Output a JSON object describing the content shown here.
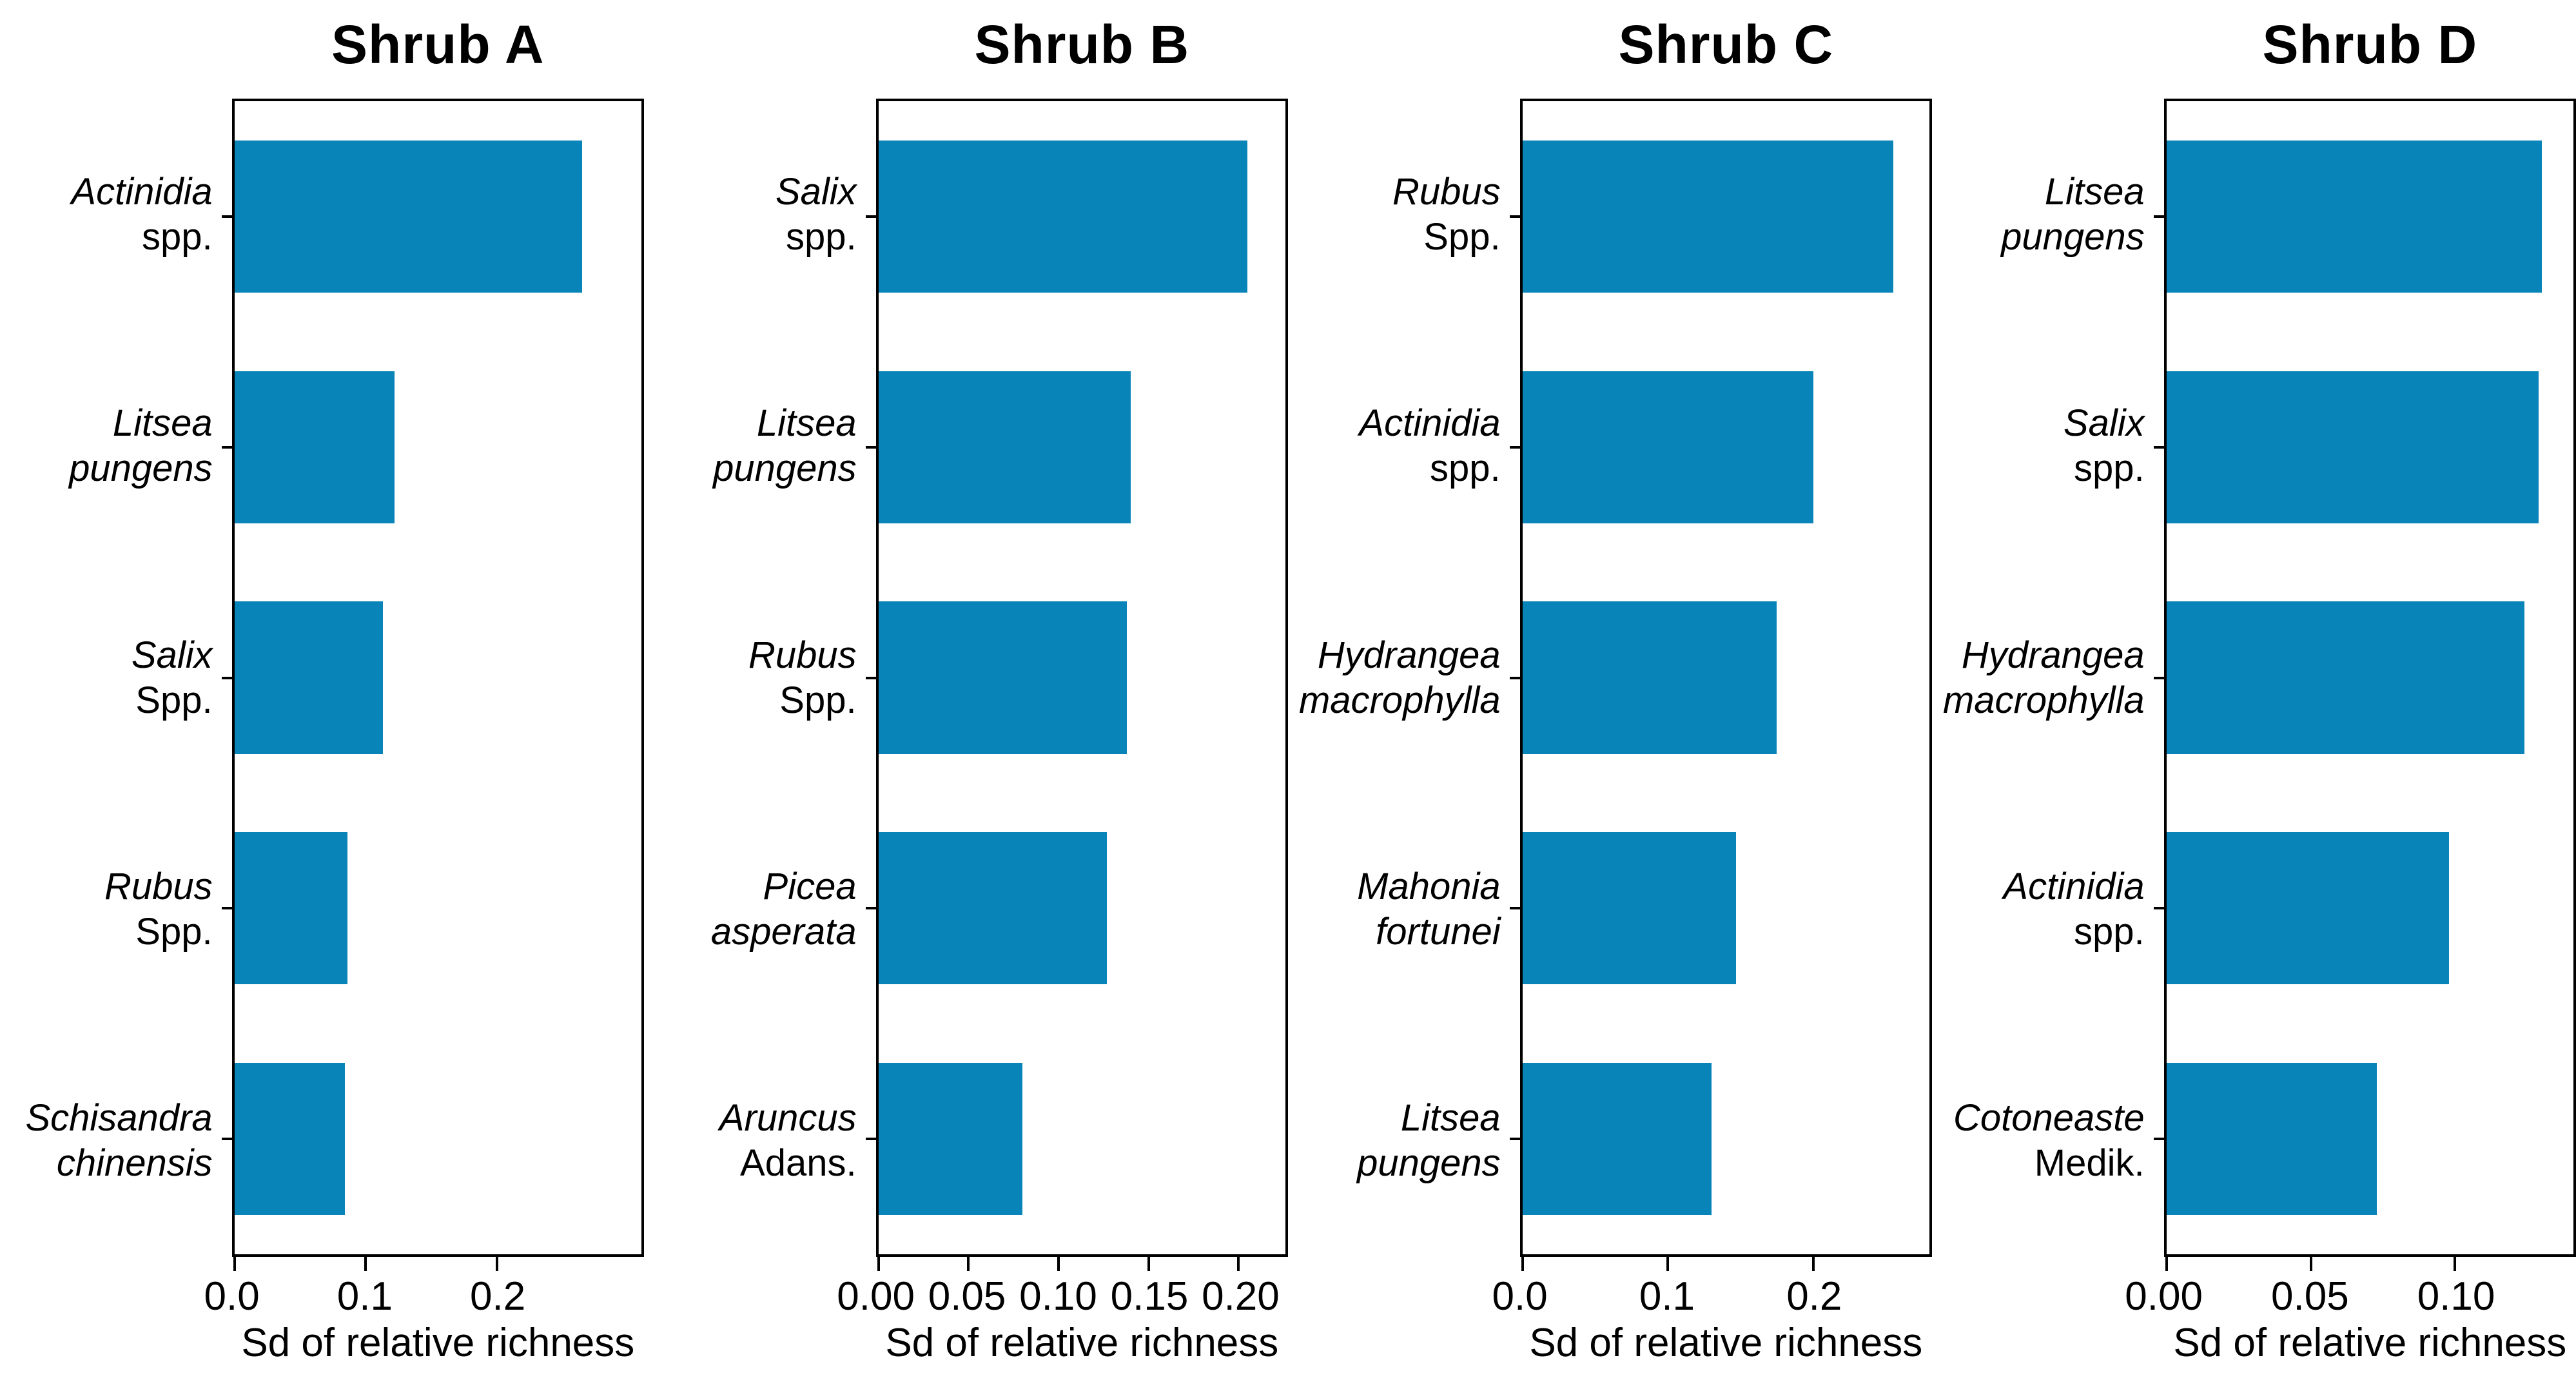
{
  "figure": {
    "background": "#ffffff",
    "bar_color": "#0884b8",
    "axis_color": "#000000",
    "text_color": "#000000"
  },
  "chart_data": [
    {
      "type": "bar",
      "orientation": "horizontal",
      "title": "Shrub A",
      "xlabel": "Sd of relative richness",
      "grid": false,
      "legend": null,
      "xlim": [
        0,
        0.31
      ],
      "xticks": {
        "values": [
          0.0,
          0.1,
          0.2
        ],
        "labels": [
          "0.0",
          "0.1",
          "0.2"
        ]
      },
      "categories": [
        {
          "line1": "Actinidia",
          "line2": "spp.",
          "line2_italic": false,
          "full": "Actinidia spp."
        },
        {
          "line1": "Litsea",
          "line2": "pungens",
          "line2_italic": true,
          "full": "Litsea pungens"
        },
        {
          "line1": "Salix",
          "line2": "Spp.",
          "line2_italic": false,
          "full": "Salix Spp."
        },
        {
          "line1": "Rubus",
          "line2": "Spp.",
          "line2_italic": false,
          "full": "Rubus Spp."
        },
        {
          "line1": "Schisandra",
          "line2": "chinensis",
          "line2_italic": true,
          "full": "Schisandra chinensis"
        }
      ],
      "values": [
        0.265,
        0.122,
        0.113,
        0.086,
        0.084
      ]
    },
    {
      "type": "bar",
      "orientation": "horizontal",
      "title": "Shrub B",
      "xlabel": "Sd of relative richness",
      "grid": false,
      "legend": null,
      "xlim": [
        0,
        0.226
      ],
      "xticks": {
        "values": [
          0.0,
          0.05,
          0.1,
          0.15,
          0.2
        ],
        "labels": [
          "0.00",
          "0.05",
          "0.10",
          "0.15",
          "0.20"
        ]
      },
      "categories": [
        {
          "line1": "Salix",
          "line2": "spp.",
          "line2_italic": false,
          "full": "Salix spp."
        },
        {
          "line1": "Litsea",
          "line2": "pungens",
          "line2_italic": true,
          "full": "Litsea pungens"
        },
        {
          "line1": "Rubus",
          "line2": "Spp.",
          "line2_italic": false,
          "full": "Rubus Spp."
        },
        {
          "line1": "Picea",
          "line2": "asperata",
          "line2_italic": true,
          "full": "Picea asperata"
        },
        {
          "line1": "Aruncus",
          "line2": "Adans.",
          "line2_italic": false,
          "full": "Aruncus Adans."
        }
      ],
      "values": [
        0.205,
        0.14,
        0.138,
        0.127,
        0.08
      ]
    },
    {
      "type": "bar",
      "orientation": "horizontal",
      "title": "Shrub C",
      "xlabel": "Sd of relative richness",
      "grid": false,
      "legend": null,
      "xlim": [
        0,
        0.28
      ],
      "xticks": {
        "values": [
          0.0,
          0.1,
          0.2
        ],
        "labels": [
          "0.0",
          "0.1",
          "0.2"
        ]
      },
      "categories": [
        {
          "line1": "Rubus",
          "line2": "Spp.",
          "line2_italic": false,
          "full": "Rubus Spp."
        },
        {
          "line1": "Actinidia",
          "line2": "spp.",
          "line2_italic": false,
          "full": "Actinidia spp."
        },
        {
          "line1": "Hydrangea",
          "line2": "macrophylla",
          "line2_italic": true,
          "full": "Hydrangea macrophylla"
        },
        {
          "line1": "Mahonia",
          "line2": "fortunei",
          "line2_italic": true,
          "full": "Mahonia fortunei"
        },
        {
          "line1": "Litsea",
          "line2": "pungens",
          "line2_italic": true,
          "full": "Litsea pungens"
        }
      ],
      "values": [
        0.255,
        0.2,
        0.175,
        0.147,
        0.13
      ]
    },
    {
      "type": "bar",
      "orientation": "horizontal",
      "title": "Shrub D",
      "xlabel": "Sd of relative richness",
      "grid": false,
      "legend": null,
      "xlim": [
        0,
        0.141
      ],
      "xticks": {
        "values": [
          0.0,
          0.05,
          0.1
        ],
        "labels": [
          "0.00",
          "0.05",
          "0.10"
        ]
      },
      "categories": [
        {
          "line1": "Litsea",
          "line2": "pungens",
          "line2_italic": true,
          "full": "Litsea pungens"
        },
        {
          "line1": "Salix",
          "line2": "spp.",
          "line2_italic": false,
          "full": "Salix spp."
        },
        {
          "line1": "Hydrangea",
          "line2": "macrophylla",
          "line2_italic": true,
          "full": "Hydrangea macrophylla"
        },
        {
          "line1": "Actinidia",
          "line2": "spp.",
          "line2_italic": false,
          "full": "Actinidia spp."
        },
        {
          "line1": "Cotoneaste",
          "line2": "Medik.",
          "line2_italic": false,
          "full": "Cotoneaste Medik."
        }
      ],
      "values": [
        0.13,
        0.129,
        0.124,
        0.098,
        0.073
      ]
    }
  ]
}
